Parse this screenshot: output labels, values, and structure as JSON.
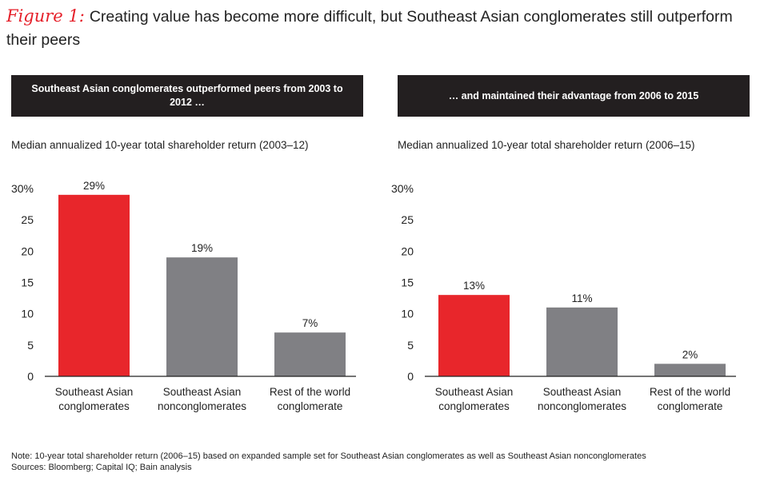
{
  "figure_label": "Figure 1:",
  "figure_title": "Creating value has become more difficult, but Southeast Asian conglomerates still outperform their peers",
  "colors": {
    "accent": "#e5202a",
    "bar_red": "#e8262b",
    "bar_gray": "#808084",
    "banner_bg": "#231f20"
  },
  "chart_data": [
    {
      "type": "bar",
      "banner": "Southeast Asian conglomerates outperformed peers from 2003 to 2012 …",
      "title": "Median annualized 10-year total shareholder return (2003–12)",
      "categories": [
        [
          "Southeast Asian",
          "conglomerates"
        ],
        [
          "Southeast Asian",
          "nonconglomerates"
        ],
        [
          "Rest of the world",
          "conglomerate"
        ]
      ],
      "values": [
        29,
        19,
        7
      ],
      "value_labels": [
        "29%",
        "19%",
        "7%"
      ],
      "bar_colors": [
        "#e8262b",
        "#808084",
        "#808084"
      ],
      "yticks": [
        "0",
        "5",
        "10",
        "15",
        "20",
        "25",
        "30%"
      ],
      "ylim": [
        0,
        30
      ],
      "xlabel": "",
      "ylabel": ""
    },
    {
      "type": "bar",
      "banner": "… and maintained their advantage from 2006 to 2015",
      "title": "Median annualized 10-year total shareholder return (2006–15)",
      "categories": [
        [
          "Southeast Asian",
          "conglomerates"
        ],
        [
          "Southeast Asian",
          "nonconglomerates"
        ],
        [
          "Rest of the world",
          "conglomerate"
        ]
      ],
      "values": [
        13,
        11,
        2
      ],
      "value_labels": [
        "13%",
        "11%",
        "2%"
      ],
      "bar_colors": [
        "#e8262b",
        "#808084",
        "#808084"
      ],
      "yticks": [
        "0",
        "5",
        "10",
        "15",
        "20",
        "25",
        "30%"
      ],
      "ylim": [
        0,
        30
      ],
      "xlabel": "",
      "ylabel": ""
    }
  ],
  "note": "Note: 10-year total shareholder return (2006–15) based on expanded sample set for Southeast Asian conglomerates as well as Southeast Asian nonconglomerates",
  "sources": "Sources: Bloomberg; Capital IQ; Bain analysis"
}
